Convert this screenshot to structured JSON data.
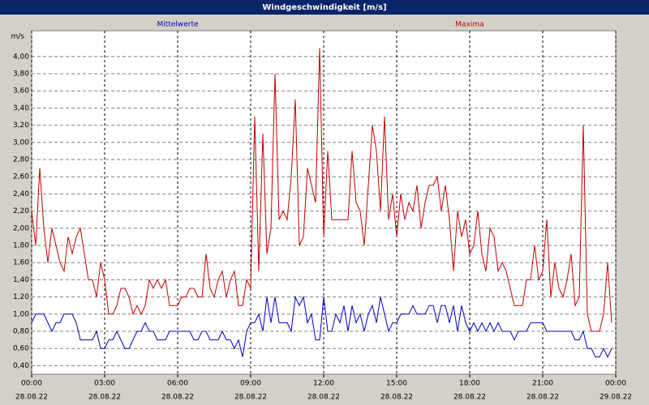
{
  "chart_data": {
    "type": "line",
    "title": "Windgeschwindigkeit [m/s]",
    "y_label": "m/s",
    "xlim": [
      0,
      1440
    ],
    "ylim": [
      0.3,
      4.3
    ],
    "grid": true,
    "xticks": [
      {
        "value": 0,
        "label": "00:00",
        "date": "28.08.22"
      },
      {
        "value": 180,
        "label": "03:00",
        "date": "28.08.22"
      },
      {
        "value": 360,
        "label": "06:00",
        "date": "28.08.22"
      },
      {
        "value": 540,
        "label": "09:00",
        "date": "28.08.22"
      },
      {
        "value": 720,
        "label": "12:00",
        "date": "28.08.22"
      },
      {
        "value": 900,
        "label": "15:00",
        "date": "28.08.22"
      },
      {
        "value": 1080,
        "label": "18:00",
        "date": "28.08.22"
      },
      {
        "value": 1260,
        "label": "21:00",
        "date": "28.08.22"
      },
      {
        "value": 1440,
        "label": "00:00",
        "date": "29.08.22"
      }
    ],
    "yticks": [
      {
        "value": 0.4,
        "label": "0,40"
      },
      {
        "value": 0.6,
        "label": "0,60"
      },
      {
        "value": 0.8,
        "label": "0,80"
      },
      {
        "value": 1.0,
        "label": "1,00"
      },
      {
        "value": 1.2,
        "label": "1,20"
      },
      {
        "value": 1.4,
        "label": "1,40"
      },
      {
        "value": 1.6,
        "label": "1,60"
      },
      {
        "value": 1.8,
        "label": "1,80"
      },
      {
        "value": 2.0,
        "label": "2,00"
      },
      {
        "value": 2.2,
        "label": "2,20"
      },
      {
        "value": 2.4,
        "label": "2,40"
      },
      {
        "value": 2.6,
        "label": "2,60"
      },
      {
        "value": 2.8,
        "label": "2,80"
      },
      {
        "value": 3.0,
        "label": "3,00"
      },
      {
        "value": 3.2,
        "label": "3,20"
      },
      {
        "value": 3.4,
        "label": "3,40"
      },
      {
        "value": 3.6,
        "label": "3,60"
      },
      {
        "value": 3.8,
        "label": "3,80"
      },
      {
        "value": 4.0,
        "label": "4,00"
      }
    ],
    "x": [
      0,
      10,
      20,
      30,
      40,
      50,
      60,
      70,
      80,
      90,
      100,
      110,
      120,
      130,
      140,
      150,
      160,
      170,
      180,
      190,
      200,
      210,
      220,
      230,
      240,
      250,
      260,
      270,
      280,
      290,
      300,
      310,
      320,
      330,
      340,
      350,
      360,
      370,
      380,
      390,
      400,
      410,
      420,
      430,
      440,
      450,
      460,
      470,
      480,
      490,
      500,
      510,
      520,
      530,
      540,
      550,
      560,
      570,
      580,
      590,
      600,
      610,
      620,
      630,
      640,
      650,
      660,
      670,
      680,
      690,
      700,
      710,
      720,
      730,
      740,
      750,
      760,
      770,
      780,
      790,
      800,
      810,
      820,
      830,
      840,
      850,
      860,
      870,
      880,
      890,
      900,
      910,
      920,
      930,
      940,
      950,
      960,
      970,
      980,
      990,
      1000,
      1010,
      1020,
      1030,
      1040,
      1050,
      1060,
      1070,
      1080,
      1090,
      1100,
      1110,
      1120,
      1130,
      1140,
      1150,
      1160,
      1170,
      1180,
      1190,
      1200,
      1210,
      1220,
      1230,
      1240,
      1250,
      1260,
      1270,
      1280,
      1290,
      1300,
      1310,
      1320,
      1330,
      1340,
      1350,
      1360,
      1370,
      1380,
      1390,
      1400,
      1410,
      1420,
      1430
    ],
    "series": [
      {
        "name": "Mittelwerte",
        "color": "#0000c0",
        "values": [
          0.9,
          1.0,
          1.0,
          1.0,
          0.9,
          0.8,
          0.9,
          0.9,
          1.0,
          1.0,
          1.0,
          0.9,
          0.7,
          0.7,
          0.7,
          0.7,
          0.8,
          0.6,
          0.6,
          0.7,
          0.7,
          0.8,
          0.7,
          0.6,
          0.6,
          0.7,
          0.8,
          0.8,
          0.9,
          0.8,
          0.8,
          0.7,
          0.7,
          0.7,
          0.8,
          0.8,
          0.8,
          0.8,
          0.8,
          0.8,
          0.7,
          0.7,
          0.8,
          0.8,
          0.7,
          0.7,
          0.7,
          0.8,
          0.7,
          0.7,
          0.6,
          0.7,
          0.5,
          0.8,
          0.9,
          0.9,
          1.0,
          0.8,
          1.2,
          0.9,
          1.2,
          0.9,
          0.9,
          0.9,
          0.8,
          1.2,
          1.1,
          1.2,
          0.9,
          1.0,
          0.7,
          0.7,
          1.2,
          0.8,
          0.8,
          1.0,
          0.9,
          1.1,
          0.8,
          1.1,
          0.9,
          1.0,
          0.8,
          1.0,
          1.1,
          0.9,
          1.2,
          1.0,
          0.8,
          0.9,
          0.9,
          1.0,
          1.0,
          1.0,
          1.1,
          1.0,
          1.0,
          1.0,
          1.1,
          1.1,
          0.9,
          1.1,
          1.1,
          0.9,
          1.1,
          0.8,
          1.1,
          0.9,
          0.8,
          0.9,
          0.8,
          0.9,
          0.8,
          0.9,
          0.8,
          0.9,
          0.8,
          0.8,
          0.8,
          0.7,
          0.8,
          0.8,
          0.8,
          0.9,
          0.9,
          0.9,
          0.9,
          0.8,
          0.8,
          0.8,
          0.8,
          0.8,
          0.8,
          0.8,
          0.7,
          0.7,
          0.8,
          0.6,
          0.6,
          0.5,
          0.5,
          0.6,
          0.5,
          0.6
        ]
      },
      {
        "name": "Maxima",
        "color": "#c00000",
        "values": [
          2.2,
          1.8,
          2.7,
          2.0,
          1.6,
          2.0,
          1.8,
          1.6,
          1.5,
          1.9,
          1.7,
          1.9,
          2.0,
          1.7,
          1.4,
          1.4,
          1.2,
          1.6,
          1.4,
          1.0,
          1.0,
          1.1,
          1.3,
          1.3,
          1.2,
          1.0,
          1.1,
          1.0,
          1.1,
          1.4,
          1.3,
          1.4,
          1.3,
          1.4,
          1.1,
          1.1,
          1.1,
          1.2,
          1.2,
          1.3,
          1.3,
          1.2,
          1.2,
          1.7,
          1.3,
          1.2,
          1.4,
          1.5,
          1.2,
          1.4,
          1.5,
          1.1,
          1.1,
          1.4,
          1.3,
          3.3,
          1.5,
          3.1,
          1.7,
          2.0,
          3.8,
          2.1,
          2.2,
          2.1,
          2.6,
          3.5,
          1.8,
          1.9,
          2.7,
          2.5,
          2.3,
          4.1,
          1.9,
          2.9,
          2.1,
          2.1,
          2.1,
          2.1,
          2.1,
          2.9,
          2.3,
          2.2,
          1.8,
          2.5,
          3.2,
          2.9,
          2.2,
          3.3,
          2.1,
          2.4,
          1.9,
          2.4,
          2.1,
          2.3,
          2.2,
          2.5,
          2.0,
          2.3,
          2.5,
          2.5,
          2.6,
          2.2,
          2.5,
          2.1,
          1.5,
          2.2,
          1.9,
          2.1,
          1.7,
          1.8,
          2.2,
          1.7,
          1.5,
          2.0,
          1.9,
          1.5,
          1.6,
          1.5,
          1.3,
          1.1,
          1.1,
          1.1,
          1.4,
          1.4,
          1.8,
          1.4,
          1.5,
          2.1,
          1.2,
          1.6,
          1.3,
          1.2,
          1.4,
          1.7,
          1.1,
          1.2,
          3.2,
          1.0,
          0.8,
          0.8,
          0.8,
          1.0,
          1.6,
          0.9
        ]
      }
    ]
  }
}
